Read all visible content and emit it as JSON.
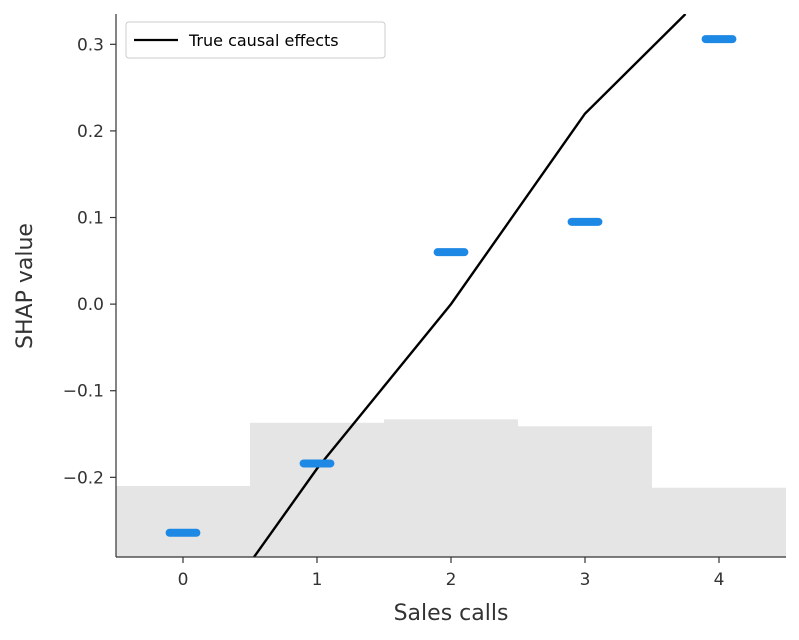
{
  "chart_data": {
    "type": "scatter",
    "title": "",
    "xlabel": "Sales calls",
    "ylabel": "SHAP value",
    "xlim": [
      -0.5,
      4.5
    ],
    "ylim": [
      -0.292,
      0.335
    ],
    "x_ticks": [
      0,
      1,
      2,
      3,
      4
    ],
    "y_ticks": [
      -0.2,
      -0.1,
      0.0,
      0.1,
      0.2,
      0.3
    ],
    "y_tick_labels": [
      "−0.2",
      "−0.1",
      "0.0",
      "0.1",
      "0.2",
      "0.3"
    ],
    "grid": false,
    "legend": {
      "placement": "top-left",
      "entries": [
        "True causal effects"
      ]
    },
    "histogram": {
      "color": "#e5e5e5",
      "bins": [
        {
          "x_start": -0.5,
          "x_end": 0.5,
          "top": -0.21
        },
        {
          "x_start": 0.5,
          "x_end": 1.5,
          "top": -0.137
        },
        {
          "x_start": 1.5,
          "x_end": 2.5,
          "top": -0.133
        },
        {
          "x_start": 2.5,
          "x_end": 3.5,
          "top": -0.141
        },
        {
          "x_start": 3.5,
          "x_end": 4.5,
          "top": -0.212
        }
      ]
    },
    "series": [
      {
        "type": "scatter",
        "color": "#1e88e5",
        "clusters": [
          {
            "x_start": -0.1,
            "x_end": 0.1,
            "y": -0.264
          },
          {
            "x_start": 0.9,
            "x_end": 1.1,
            "y": -0.184
          },
          {
            "x_start": 1.9,
            "x_end": 2.1,
            "y": 0.06
          },
          {
            "x_start": 2.9,
            "x_end": 3.1,
            "y": 0.095
          },
          {
            "x_start": 3.9,
            "x_end": 4.1,
            "y": 0.306
          }
        ]
      },
      {
        "name": "True causal effects",
        "type": "line",
        "color": "#000000",
        "x": [
          0.53,
          1,
          2,
          3,
          3.75
        ],
        "y": [
          -0.292,
          -0.19,
          0.0,
          0.22,
          0.335
        ]
      }
    ]
  }
}
